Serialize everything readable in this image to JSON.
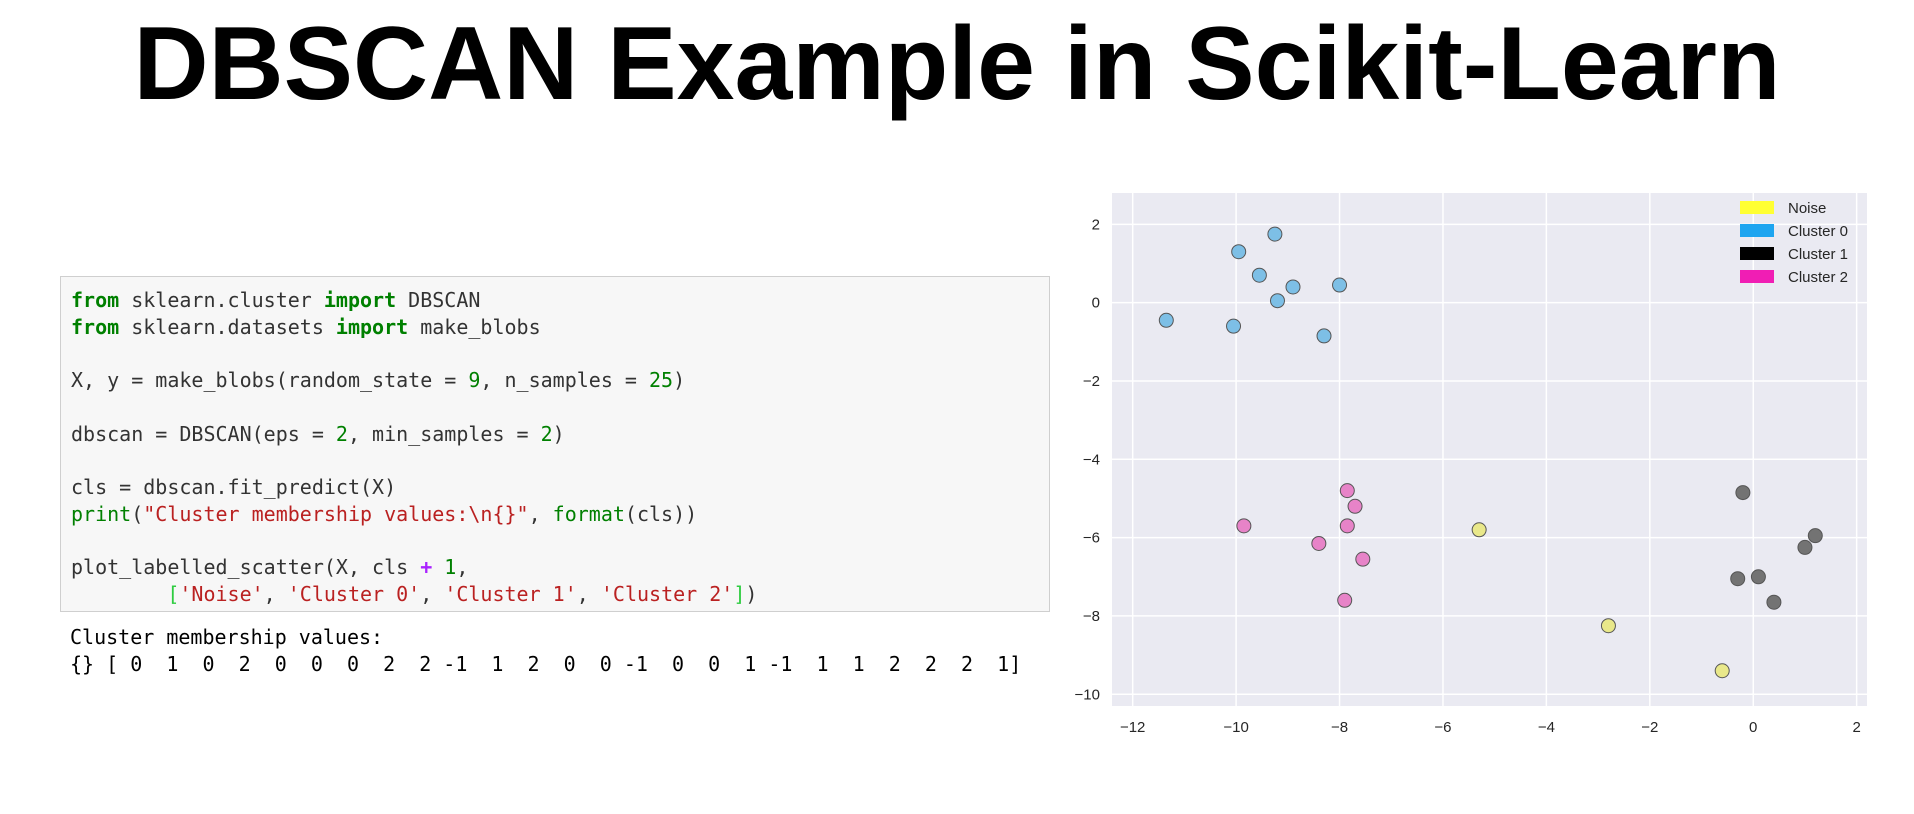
{
  "slide": {
    "title": "DBSCAN Example in Scikit-Learn"
  },
  "code": {
    "line1": {
      "kw1": "from",
      "t1": " sklearn.cluster ",
      "kw2": "import",
      "t2": " DBSCAN"
    },
    "line2": {
      "kw1": "from",
      "t1": " sklearn.datasets ",
      "kw2": "import",
      "t2": " make_blobs"
    },
    "line3": {
      "t1": "X, y = make_blobs(random_state = ",
      "n1": "9",
      "t2": ", n_samples = ",
      "n2": "25",
      "t3": ")"
    },
    "line4": {
      "t1": "dbscan = DBSCAN(eps = ",
      "n1": "2",
      "t2": ", min_samples = ",
      "n2": "2",
      "t3": ")"
    },
    "line5": {
      "t1": "cls = dbscan.fit_predict(X)"
    },
    "line6": {
      "b1": "print",
      "t1": "(",
      "s1": "\"Cluster membership values:\\n{}\"",
      "t2": ", ",
      "b2": "format",
      "t3": "(cls))"
    },
    "line7": {
      "t1": "plot_labelled_scatter(X, cls ",
      "op": "+",
      "t2": " ",
      "n1": "1",
      "t3": ","
    },
    "line8": {
      "indent": "        ",
      "b1": "[",
      "s1": "'Noise'",
      "c1": ", ",
      "s2": "'Cluster 0'",
      "c2": ", ",
      "s3": "'Cluster 1'",
      "c3": ", ",
      "s4": "'Cluster 2'",
      "b2": "]",
      "t1": ")"
    }
  },
  "output": {
    "line1": "Cluster membership values:",
    "line2": "{} [ 0  1  0  2  0  0  0  2  2 -1  1  2  0  0 -1  0  0  1 -1  1  1  2  2  2  1]"
  },
  "chart_data": {
    "type": "scatter",
    "xlim": [
      -12.4,
      2.2
    ],
    "ylim": [
      -10.3,
      2.8
    ],
    "xticks": [
      "-12",
      "-10",
      "-8",
      "-6",
      "-4",
      "-2",
      "0",
      "2"
    ],
    "yticks": [
      "2",
      "0",
      "-2",
      "-4",
      "-6",
      "-8",
      "-10"
    ],
    "xtick_values": [
      -12,
      -10,
      -8,
      -6,
      -4,
      -2,
      0,
      2
    ],
    "ytick_values": [
      2,
      0,
      -2,
      -4,
      -6,
      -8,
      -10
    ],
    "grid": true,
    "legend_position": "top-right",
    "series": [
      {
        "name": "Noise",
        "color": "#ffff33",
        "point_color": "#e9e88a",
        "points": [
          [
            -5.3,
            -5.8
          ],
          [
            -2.8,
            -8.25
          ],
          [
            -0.6,
            -9.4
          ]
        ]
      },
      {
        "name": "Cluster 0",
        "color": "#1ea5f0",
        "point_color": "#7dbfe6",
        "points": [
          [
            -9.95,
            1.3
          ],
          [
            -9.25,
            1.75
          ],
          [
            -9.55,
            0.7
          ],
          [
            -8.9,
            0.4
          ],
          [
            -9.2,
            0.05
          ],
          [
            -8.0,
            0.45
          ],
          [
            -11.35,
            -0.45
          ],
          [
            -10.05,
            -0.6
          ],
          [
            -8.3,
            -0.85
          ]
        ]
      },
      {
        "name": "Cluster 1",
        "color": "#000000",
        "point_color": "#737373",
        "points": [
          [
            -0.2,
            -4.85
          ],
          [
            1.2,
            -5.95
          ],
          [
            1.0,
            -6.25
          ],
          [
            0.1,
            -7.0
          ],
          [
            -0.3,
            -7.05
          ],
          [
            0.4,
            -7.65
          ]
        ]
      },
      {
        "name": "Cluster 2",
        "color": "#f01eb4",
        "point_color": "#e783c8",
        "points": [
          [
            -7.85,
            -4.8
          ],
          [
            -7.7,
            -5.2
          ],
          [
            -9.85,
            -5.7
          ],
          [
            -7.85,
            -5.7
          ],
          [
            -8.4,
            -6.15
          ],
          [
            -7.55,
            -6.55
          ],
          [
            -7.9,
            -7.6
          ]
        ]
      }
    ]
  }
}
